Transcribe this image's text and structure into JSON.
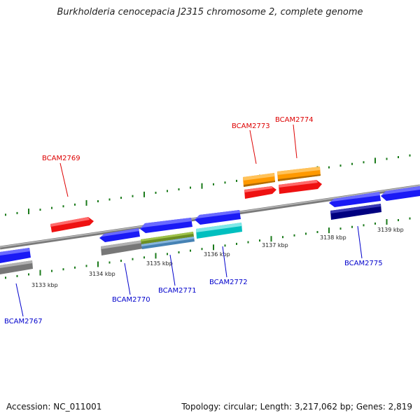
{
  "title": "Burkholderia cenocepacia J2315 chromosome 2, complete genome",
  "footer": {
    "accession": "Accession: NC_011001",
    "summary": "Topology: circular; Length: 3,217,062 bp; Genes: 2,819"
  },
  "scale_labels": [
    "3133 kbp",
    "3134 kbp",
    "3135 kbp",
    "3136 kbp",
    "3137 kbp",
    "3138 kbp",
    "3139 kbp"
  ],
  "gene_labels": [
    {
      "name": "BCAM2767",
      "strand": "reverse",
      "color": "#0000cc"
    },
    {
      "name": "BCAM2769",
      "strand": "forward",
      "color": "#dd0000"
    },
    {
      "name": "BCAM2770",
      "strand": "reverse",
      "color": "#0000cc"
    },
    {
      "name": "BCAM2771",
      "strand": "reverse",
      "color": "#0000cc"
    },
    {
      "name": "BCAM2772",
      "strand": "reverse",
      "color": "#0000cc"
    },
    {
      "name": "BCAM2773",
      "strand": "forward",
      "color": "#dd0000"
    },
    {
      "name": "BCAM2774",
      "strand": "forward",
      "color": "#dd0000"
    },
    {
      "name": "BCAM2775",
      "strand": "reverse",
      "color": "#0000cc"
    }
  ]
}
